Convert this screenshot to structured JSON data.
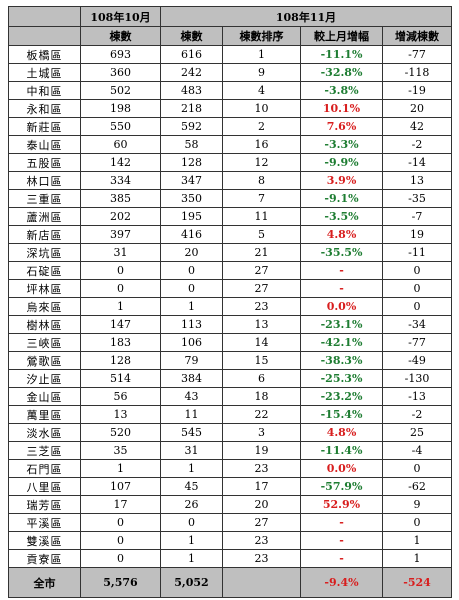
{
  "header": {
    "oct_label": "108年10月",
    "nov_label": "108年11月",
    "col_oct_count": "棟數",
    "col_nov_count": "棟數",
    "col_rank": "棟數排序",
    "col_mom": "較上月增幅",
    "col_diff": "增減棟數"
  },
  "rows": [
    {
      "district": "板橋區",
      "oct": "693",
      "nov": "616",
      "rank": "1",
      "pct": "-11.1%",
      "diff": "-77"
    },
    {
      "district": "土城區",
      "oct": "360",
      "nov": "242",
      "rank": "9",
      "pct": "-32.8%",
      "diff": "-118"
    },
    {
      "district": "中和區",
      "oct": "502",
      "nov": "483",
      "rank": "4",
      "pct": "-3.8%",
      "diff": "-19"
    },
    {
      "district": "永和區",
      "oct": "198",
      "nov": "218",
      "rank": "10",
      "pct": "10.1%",
      "diff": "20"
    },
    {
      "district": "新莊區",
      "oct": "550",
      "nov": "592",
      "rank": "2",
      "pct": "7.6%",
      "diff": "42"
    },
    {
      "district": "泰山區",
      "oct": "60",
      "nov": "58",
      "rank": "16",
      "pct": "-3.3%",
      "diff": "-2"
    },
    {
      "district": "五股區",
      "oct": "142",
      "nov": "128",
      "rank": "12",
      "pct": "-9.9%",
      "diff": "-14"
    },
    {
      "district": "林口區",
      "oct": "334",
      "nov": "347",
      "rank": "8",
      "pct": "3.9%",
      "diff": "13"
    },
    {
      "district": "三重區",
      "oct": "385",
      "nov": "350",
      "rank": "7",
      "pct": "-9.1%",
      "diff": "-35"
    },
    {
      "district": "蘆洲區",
      "oct": "202",
      "nov": "195",
      "rank": "11",
      "pct": "-3.5%",
      "diff": "-7"
    },
    {
      "district": "新店區",
      "oct": "397",
      "nov": "416",
      "rank": "5",
      "pct": "4.8%",
      "diff": "19"
    },
    {
      "district": "深坑區",
      "oct": "31",
      "nov": "20",
      "rank": "21",
      "pct": "-35.5%",
      "diff": "-11"
    },
    {
      "district": "石碇區",
      "oct": "0",
      "nov": "0",
      "rank": "27",
      "pct": "-",
      "diff": "0"
    },
    {
      "district": "坪林區",
      "oct": "0",
      "nov": "0",
      "rank": "27",
      "pct": "-",
      "diff": "0"
    },
    {
      "district": "烏來區",
      "oct": "1",
      "nov": "1",
      "rank": "23",
      "pct": "0.0%",
      "diff": "0"
    },
    {
      "district": "樹林區",
      "oct": "147",
      "nov": "113",
      "rank": "13",
      "pct": "-23.1%",
      "diff": "-34"
    },
    {
      "district": "三峽區",
      "oct": "183",
      "nov": "106",
      "rank": "14",
      "pct": "-42.1%",
      "diff": "-77"
    },
    {
      "district": "鶯歌區",
      "oct": "128",
      "nov": "79",
      "rank": "15",
      "pct": "-38.3%",
      "diff": "-49"
    },
    {
      "district": "汐止區",
      "oct": "514",
      "nov": "384",
      "rank": "6",
      "pct": "-25.3%",
      "diff": "-130"
    },
    {
      "district": "金山區",
      "oct": "56",
      "nov": "43",
      "rank": "18",
      "pct": "-23.2%",
      "diff": "-13"
    },
    {
      "district": "萬里區",
      "oct": "13",
      "nov": "11",
      "rank": "22",
      "pct": "-15.4%",
      "diff": "-2"
    },
    {
      "district": "淡水區",
      "oct": "520",
      "nov": "545",
      "rank": "3",
      "pct": "4.8%",
      "diff": "25"
    },
    {
      "district": "三芝區",
      "oct": "35",
      "nov": "31",
      "rank": "19",
      "pct": "-11.4%",
      "diff": "-4"
    },
    {
      "district": "石門區",
      "oct": "1",
      "nov": "1",
      "rank": "23",
      "pct": "0.0%",
      "diff": "0"
    },
    {
      "district": "八里區",
      "oct": "107",
      "nov": "45",
      "rank": "17",
      "pct": "-57.9%",
      "diff": "-62"
    },
    {
      "district": "瑞芳區",
      "oct": "17",
      "nov": "26",
      "rank": "20",
      "pct": "52.9%",
      "diff": "9"
    },
    {
      "district": "平溪區",
      "oct": "0",
      "nov": "0",
      "rank": "27",
      "pct": "-",
      "diff": "0"
    },
    {
      "district": "雙溪區",
      "oct": "0",
      "nov": "1",
      "rank": "23",
      "pct": "-",
      "diff": "1"
    },
    {
      "district": "貢寮區",
      "oct": "0",
      "nov": "1",
      "rank": "23",
      "pct": "-",
      "diff": "1"
    }
  ],
  "total": {
    "label": "全市",
    "oct": "5,576",
    "nov": "5,052",
    "rank": "",
    "pct": "-9.4%",
    "diff": "-524"
  },
  "colors": {
    "header_bg": "#bfbfbf",
    "negative_pct": "#1e7d32",
    "positive_pct": "#d81e1e"
  }
}
